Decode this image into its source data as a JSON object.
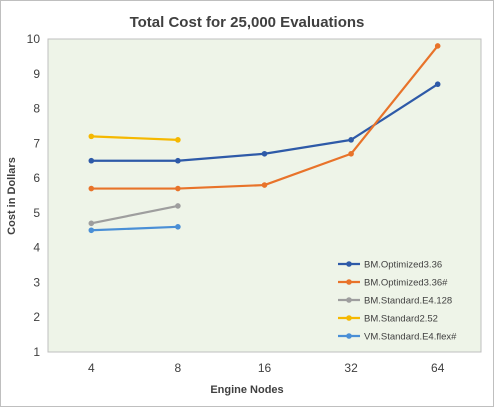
{
  "chart_data": {
    "type": "line",
    "title": "Total Cost for 25,000 Evaluations",
    "xlabel": "Engine Nodes",
    "ylabel": "Cost in Dollars",
    "categories": [
      "4",
      "8",
      "16",
      "32",
      "64"
    ],
    "ylim": [
      1,
      10
    ],
    "yticks": [
      1,
      2,
      3,
      4,
      5,
      6,
      7,
      8,
      9,
      10
    ],
    "grid": false,
    "plot_background": "#eef4e8",
    "legend_position": "bottom-right",
    "series": [
      {
        "name": "BM.Optimized3.36",
        "color": "#2e5aa8",
        "values": [
          6.5,
          6.5,
          6.7,
          7.1,
          8.7
        ]
      },
      {
        "name": "BM.Optimized3.36#",
        "color": "#e8732a",
        "values": [
          5.7,
          5.7,
          5.8,
          6.7,
          9.8
        ]
      },
      {
        "name": "BM.Standard.E4.128",
        "color": "#9e9e9e",
        "values": [
          4.7,
          5.2,
          null,
          null,
          null
        ]
      },
      {
        "name": "BM.Standard2.52",
        "color": "#f5b800",
        "values": [
          7.2,
          7.1,
          null,
          null,
          null
        ]
      },
      {
        "name": "VM.Standard.E4.flex#",
        "color": "#4a8fd6",
        "values": [
          4.5,
          4.6,
          null,
          null,
          null
        ]
      }
    ]
  }
}
